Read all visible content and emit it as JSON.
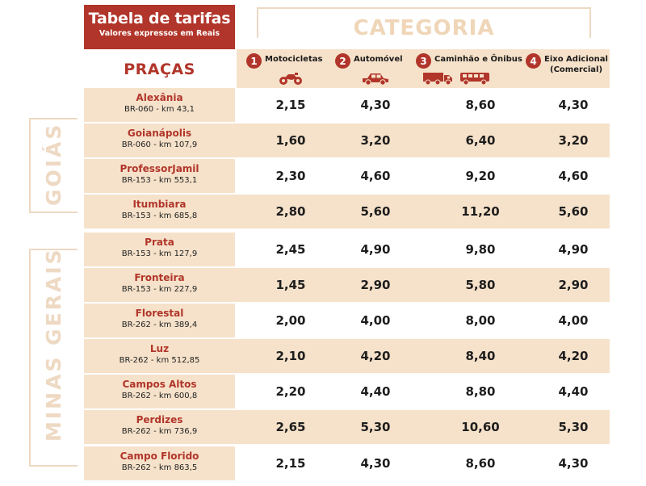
{
  "header": {
    "title": "Tabela de tarifas",
    "subtitle": "Valores expressos em Reais",
    "category_title": "CATEGORIA",
    "pracas_label": "PRAÇAS"
  },
  "categories": [
    {
      "num": "1",
      "label": "Motocicletas",
      "label2": "",
      "icons": [
        "motorcycle-icon"
      ]
    },
    {
      "num": "2",
      "label": "Automóvel",
      "label2": "",
      "icons": [
        "car-icon"
      ]
    },
    {
      "num": "3",
      "label": "Caminhão e Ônibus",
      "label2": "",
      "icons": [
        "truck-icon",
        "bus-icon"
      ]
    },
    {
      "num": "4",
      "label": "Eixo Adicional",
      "label2": "(Comercial)",
      "icons": []
    }
  ],
  "states": {
    "goias": "GOIÁS",
    "minas_gerais": "MINAS GERAIS"
  },
  "rows": [
    {
      "city": "Alexânia",
      "road": "BR-060 - km 43,1",
      "values": [
        "2,15",
        "4,30",
        "8,60",
        "4,30"
      ]
    },
    {
      "city": "Goianápolis",
      "road": "BR-060 - km 107,9",
      "values": [
        "1,60",
        "3,20",
        "6,40",
        "3,20"
      ]
    },
    {
      "city": "ProfessorJamil",
      "road": "BR-153 - km 553,1",
      "values": [
        "2,30",
        "4,60",
        "9,20",
        "4,60"
      ]
    },
    {
      "city": "Itumbiara",
      "road": "BR-153 - km 685,8",
      "values": [
        "2,80",
        "5,60",
        "11,20",
        "5,60"
      ]
    },
    {
      "city": "Prata",
      "road": "BR-153 - km 127,9",
      "values": [
        "2,45",
        "4,90",
        "9,80",
        "4,90"
      ]
    },
    {
      "city": "Fronteira",
      "road": "BR-153 - km 227,9",
      "values": [
        "1,45",
        "2,90",
        "5,80",
        "2,90"
      ]
    },
    {
      "city": "Florestal",
      "road": "BR-262 - km 389,4",
      "values": [
        "2,00",
        "4,00",
        "8,00",
        "4,00"
      ]
    },
    {
      "city": "Luz",
      "road": "BR-262 - km 512,85",
      "values": [
        "2,10",
        "4,20",
        "8,40",
        "4,20"
      ]
    },
    {
      "city": "Campos Altos",
      "road": "BR-262 - km 600,8",
      "values": [
        "2,20",
        "4,40",
        "8,80",
        "4,40"
      ]
    },
    {
      "city": "Perdizes",
      "road": "BR-262 - km 736,9",
      "values": [
        "2,65",
        "5,30",
        "10,60",
        "5,30"
      ]
    },
    {
      "city": "Campo Florido",
      "road": "BR-262 - km 863,5",
      "values": [
        "2,15",
        "4,30",
        "8,60",
        "4,30"
      ]
    }
  ],
  "colors": {
    "accent_red": "#b1352a",
    "band_beige": "#f6e2ca",
    "label_beige": "#eed9c3"
  }
}
